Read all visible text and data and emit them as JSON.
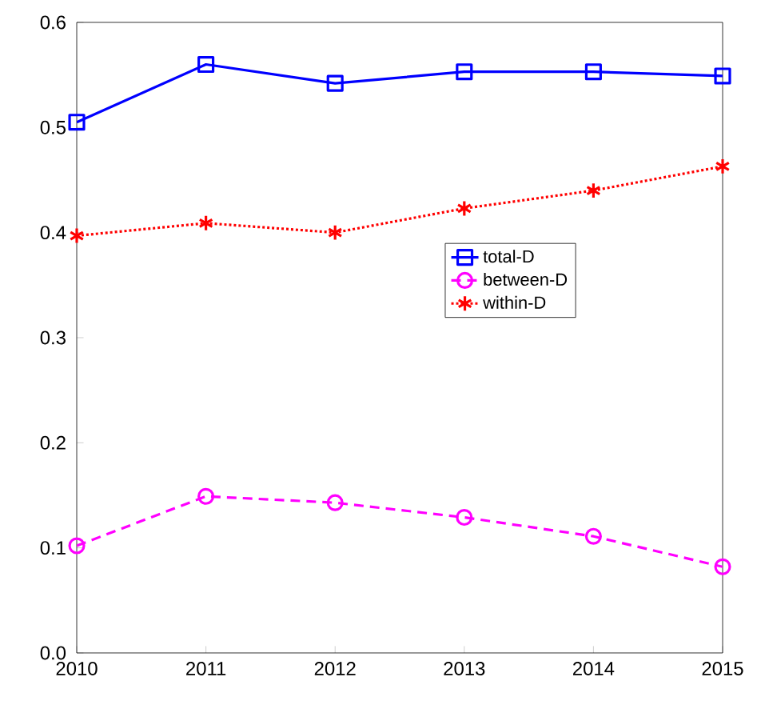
{
  "chart_data": {
    "type": "line",
    "x": [
      2010,
      2011,
      2012,
      2013,
      2014,
      2015
    ],
    "xlim": [
      2010,
      2015
    ],
    "xticks": [
      2010,
      2011,
      2012,
      2013,
      2014,
      2015
    ],
    "ylim": [
      0,
      0.6
    ],
    "yticks": [
      {
        "value": 0,
        "label": "0.0"
      },
      0.1,
      0.2,
      0.3,
      0.4,
      0.5,
      0.6
    ],
    "legend": "right",
    "grid": false,
    "series": [
      {
        "name": "total-D",
        "color": "#0000ff",
        "marker": "square",
        "line_style": "solid",
        "values": [
          0.505,
          0.56,
          0.542,
          0.553,
          0.553,
          0.549
        ]
      },
      {
        "name": "between-D",
        "color": "#ff00ff",
        "marker": "circle",
        "line_style": "dashed",
        "values": [
          0.102,
          0.149,
          0.143,
          0.129,
          0.111,
          0.082
        ]
      },
      {
        "name": "within-D",
        "color": "#ff0000",
        "marker": "cross",
        "line_style": "dotted",
        "values": [
          0.397,
          0.409,
          0.4,
          0.423,
          0.44,
          0.463
        ]
      }
    ]
  }
}
